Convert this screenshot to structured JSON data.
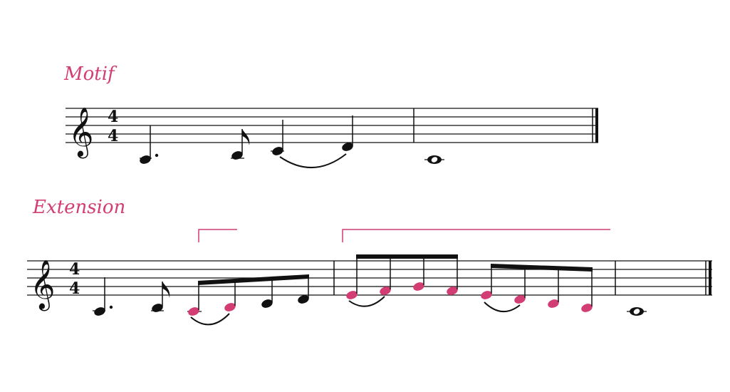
{
  "labels": {
    "motif": "Motif",
    "extension": "Extension"
  },
  "colors": {
    "highlight": "#d23d73",
    "ink": "#111111"
  },
  "time_signature": {
    "numerator": "4",
    "denominator": "4"
  },
  "clef_glyph": "𝄞",
  "motif": {
    "notes": [
      "A3 dotted-quarter",
      "A3 eighth",
      "C4 quarter",
      "E4 quarter",
      "A3 whole"
    ]
  },
  "extension": {
    "notes": [
      "A3 dotted-quarter",
      "A3 eighth",
      "A3 eighth",
      "B3 eighth",
      "C4 eighth",
      "D4 eighth",
      "E4 eighth",
      "F4 eighth",
      "G4 eighth",
      "F4 eighth",
      "E4 eighth",
      "D4 eighth",
      "C4 eighth",
      "B3 eighth",
      "A3 whole"
    ],
    "highlighted_groups": [
      "A3 B3",
      "E4 F4 G4 F4 E4 D4 C4 B3"
    ]
  }
}
